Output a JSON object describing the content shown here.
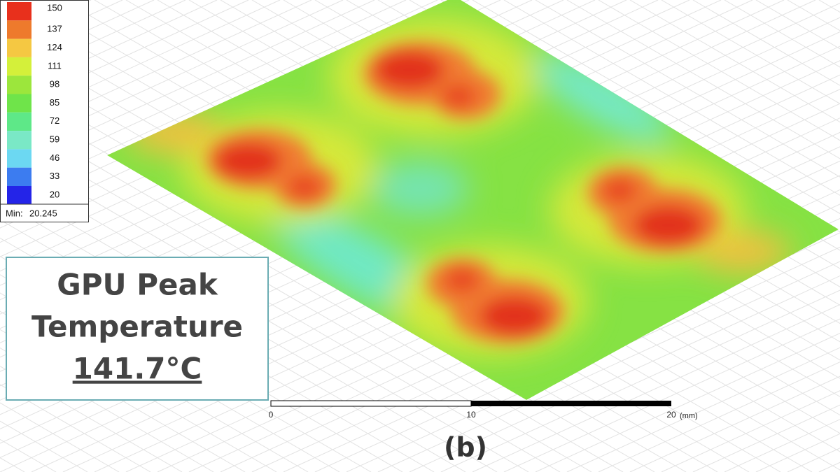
{
  "legend": {
    "items": [
      {
        "label": 150,
        "color": "#e8301c"
      },
      {
        "label": 137,
        "color": "#ee7a2c"
      },
      {
        "label": 124,
        "color": "#f5c842"
      },
      {
        "label": 111,
        "color": "#d4f03a"
      },
      {
        "label": 98,
        "color": "#9ce63c"
      },
      {
        "label": 85,
        "color": "#6fe44a"
      },
      {
        "label": 72,
        "color": "#5ee888"
      },
      {
        "label": 59,
        "color": "#7ae8c6"
      },
      {
        "label": 46,
        "color": "#6cd8f2"
      },
      {
        "label": 33,
        "color": "#3c7cf0"
      },
      {
        "label": 20,
        "color": "#2424e8"
      }
    ],
    "min_label": "Min:",
    "min_value": "20.245"
  },
  "callout": {
    "lines": [
      "GPU Peak",
      "Temperature",
      "141.7°C"
    ]
  },
  "scale_bar": {
    "ticks": [
      0,
      10,
      20
    ],
    "unit": "(mm)"
  },
  "caption": "(b)"
}
